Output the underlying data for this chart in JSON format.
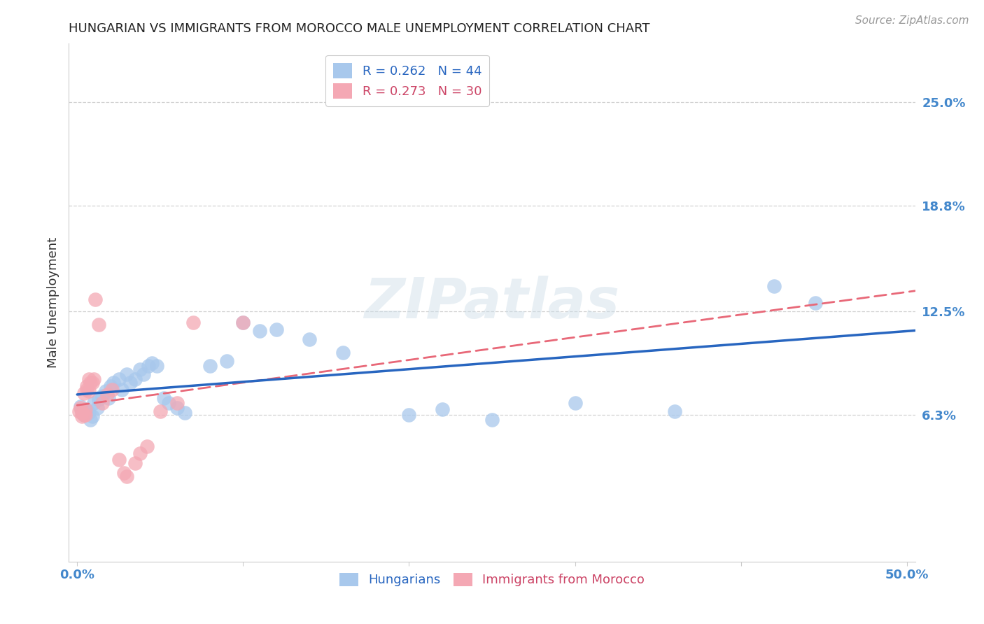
{
  "title": "HUNGARIAN VS IMMIGRANTS FROM MOROCCO MALE UNEMPLOYMENT CORRELATION CHART",
  "source": "Source: ZipAtlas.com",
  "ylabel": "Male Unemployment",
  "xlim": [
    -0.005,
    0.505
  ],
  "ylim": [
    -0.025,
    0.285
  ],
  "hungarian_color": "#A8C8EC",
  "morocco_color": "#F4A8B4",
  "hungarian_line_color": "#2866C0",
  "morocco_line_color": "#E86878",
  "r_hungarian": 0.262,
  "n_hungarian": 44,
  "r_morocco": 0.273,
  "n_morocco": 30,
  "watermark": "ZIPatlas",
  "background_color": "#ffffff",
  "grid_color": "#cccccc",
  "ytick_positions": [
    0.063,
    0.125,
    0.188,
    0.25
  ],
  "ytick_labels": [
    "6.3%",
    "12.5%",
    "18.8%",
    "25.0%"
  ],
  "hun_x": [
    0.002,
    0.003,
    0.004,
    0.005,
    0.006,
    0.007,
    0.008,
    0.009,
    0.01,
    0.012,
    0.013,
    0.015,
    0.017,
    0.019,
    0.02,
    0.022,
    0.025,
    0.027,
    0.03,
    0.032,
    0.035,
    0.038,
    0.04,
    0.043,
    0.045,
    0.048,
    0.052,
    0.055,
    0.06,
    0.065,
    0.08,
    0.09,
    0.1,
    0.11,
    0.12,
    0.14,
    0.16,
    0.2,
    0.22,
    0.25,
    0.3,
    0.36,
    0.42,
    0.445
  ],
  "hun_y": [
    0.068,
    0.065,
    0.063,
    0.066,
    0.065,
    0.064,
    0.06,
    0.062,
    0.07,
    0.067,
    0.072,
    0.074,
    0.077,
    0.073,
    0.08,
    0.082,
    0.084,
    0.078,
    0.087,
    0.082,
    0.084,
    0.09,
    0.087,
    0.092,
    0.094,
    0.092,
    0.073,
    0.07,
    0.067,
    0.064,
    0.092,
    0.095,
    0.118,
    0.113,
    0.114,
    0.108,
    0.1,
    0.063,
    0.066,
    0.06,
    0.07,
    0.065,
    0.14,
    0.13
  ],
  "mor_x": [
    0.001,
    0.002,
    0.003,
    0.003,
    0.004,
    0.004,
    0.005,
    0.005,
    0.006,
    0.006,
    0.007,
    0.007,
    0.008,
    0.009,
    0.01,
    0.011,
    0.013,
    0.015,
    0.018,
    0.021,
    0.025,
    0.028,
    0.03,
    0.035,
    0.038,
    0.042,
    0.05,
    0.06,
    0.07,
    0.1
  ],
  "mor_y": [
    0.065,
    0.067,
    0.064,
    0.062,
    0.063,
    0.076,
    0.066,
    0.063,
    0.078,
    0.08,
    0.084,
    0.077,
    0.082,
    0.082,
    0.084,
    0.132,
    0.117,
    0.07,
    0.075,
    0.078,
    0.036,
    0.028,
    0.026,
    0.034,
    0.04,
    0.044,
    0.065,
    0.07,
    0.118,
    0.118
  ]
}
